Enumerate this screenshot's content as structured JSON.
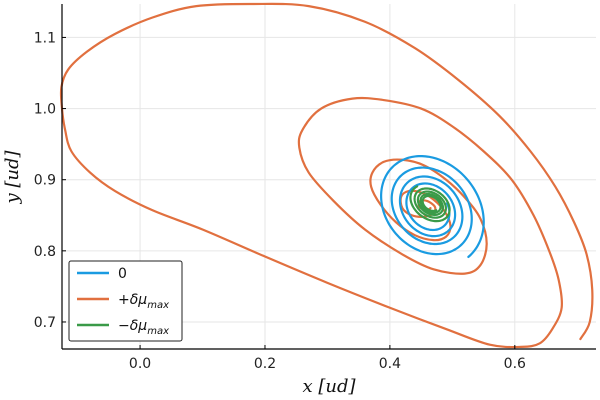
{
  "chart_data": {
    "type": "line",
    "xlabel": "x [ud]",
    "ylabel": "y [ud]",
    "xlim": [
      -0.125,
      0.73
    ],
    "ylim": [
      0.662,
      1.147
    ],
    "x_ticks": [
      "0.0",
      "0.2",
      "0.4",
      "0.6"
    ],
    "y_ticks": [
      "0.7",
      "0.8",
      "0.9",
      "1.0",
      "1.1"
    ],
    "grid": true,
    "legend": {
      "placement": "bottom-left"
    },
    "series": [
      {
        "name": "0",
        "label_parts": {
          "prefix": "",
          "symbol": "0",
          "sub": ""
        },
        "color": "#1a9be1",
        "spiral": {
          "center": [
            0.463,
            0.86
          ],
          "r0": 0.095,
          "ry0": 0.075,
          "turns": 4.2,
          "decay": 0.78,
          "tilt": -0.55,
          "start_angle": -0.35
        }
      },
      {
        "name": "+δμmax",
        "label_parts": {
          "prefix": "+",
          "symbol": "δμ",
          "sub": "max"
        },
        "color": "#e1703f",
        "points": [
          [
            0.705,
            0.676
          ],
          [
            0.72,
            0.7
          ],
          [
            0.724,
            0.745
          ],
          [
            0.715,
            0.795
          ],
          [
            0.695,
            0.84
          ],
          [
            0.665,
            0.89
          ],
          [
            0.625,
            0.94
          ],
          [
            0.575,
            0.99
          ],
          [
            0.51,
            1.04
          ],
          [
            0.44,
            1.085
          ],
          [
            0.36,
            1.122
          ],
          [
            0.27,
            1.144
          ],
          [
            0.18,
            1.147
          ],
          [
            0.09,
            1.144
          ],
          [
            0.02,
            1.128
          ],
          [
            -0.04,
            1.105
          ],
          [
            -0.085,
            1.08
          ],
          [
            -0.115,
            1.055
          ],
          [
            -0.126,
            1.03
          ],
          [
            -0.125,
            1.0
          ],
          [
            -0.12,
            0.97
          ],
          [
            -0.11,
            0.94
          ],
          [
            -0.08,
            0.91
          ],
          [
            -0.04,
            0.884
          ],
          [
            0.02,
            0.857
          ],
          [
            0.1,
            0.83
          ],
          [
            0.2,
            0.792
          ],
          [
            0.3,
            0.755
          ],
          [
            0.4,
            0.72
          ],
          [
            0.49,
            0.69
          ],
          [
            0.56,
            0.668
          ],
          [
            0.61,
            0.665
          ],
          [
            0.64,
            0.67
          ],
          [
            0.66,
            0.69
          ],
          [
            0.675,
            0.72
          ],
          [
            0.67,
            0.76
          ],
          [
            0.655,
            0.8
          ],
          [
            0.63,
            0.85
          ],
          [
            0.595,
            0.9
          ],
          [
            0.55,
            0.94
          ],
          [
            0.5,
            0.975
          ],
          [
            0.45,
            1.0
          ],
          [
            0.39,
            1.012
          ],
          [
            0.34,
            1.014
          ],
          [
            0.29,
            1.0
          ],
          [
            0.26,
            0.97
          ],
          [
            0.255,
            0.945
          ],
          [
            0.27,
            0.91
          ],
          [
            0.31,
            0.87
          ],
          [
            0.36,
            0.83
          ],
          [
            0.42,
            0.795
          ],
          [
            0.47,
            0.774
          ],
          [
            0.52,
            0.768
          ],
          [
            0.545,
            0.78
          ],
          [
            0.555,
            0.81
          ],
          [
            0.545,
            0.845
          ],
          [
            0.52,
            0.875
          ],
          [
            0.49,
            0.9
          ],
          [
            0.455,
            0.92
          ],
          [
            0.42,
            0.928
          ],
          [
            0.39,
            0.925
          ],
          [
            0.372,
            0.91
          ],
          [
            0.37,
            0.89
          ],
          [
            0.385,
            0.865
          ],
          [
            0.41,
            0.84
          ],
          [
            0.44,
            0.822
          ],
          [
            0.47,
            0.815
          ],
          [
            0.49,
            0.82
          ],
          [
            0.497,
            0.835
          ],
          [
            0.488,
            0.855
          ],
          [
            0.47,
            0.872
          ],
          [
            0.45,
            0.882
          ],
          [
            0.43,
            0.884
          ],
          [
            0.418,
            0.876
          ],
          [
            0.42,
            0.86
          ],
          [
            0.435,
            0.85
          ],
          [
            0.455,
            0.848
          ],
          [
            0.47,
            0.853
          ],
          [
            0.472,
            0.862
          ],
          [
            0.46,
            0.87
          ],
          [
            0.448,
            0.87
          ],
          [
            0.447,
            0.862
          ],
          [
            0.458,
            0.857
          ],
          [
            0.465,
            0.86
          ]
        ]
      },
      {
        "name": "−δμmax",
        "label_parts": {
          "prefix": "−",
          "symbol": "δμ",
          "sub": "max"
        },
        "color": "#3a9a48",
        "spiral": {
          "center": [
            0.466,
            0.866
          ],
          "r0": 0.036,
          "ry0": 0.024,
          "turns": 4.5,
          "decay": 0.8,
          "tilt": -0.45,
          "start_angle": 2.6
        }
      }
    ]
  }
}
